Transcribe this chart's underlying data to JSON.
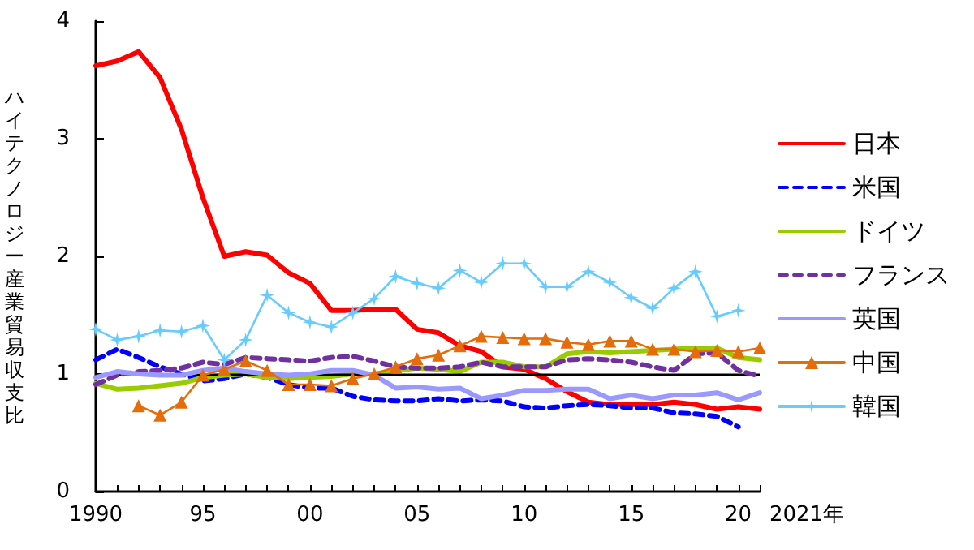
{
  "chart_data": {
    "type": "line",
    "ylabel": "ハイテクノロジー産業貿易収支比",
    "x": [
      1990,
      1991,
      1992,
      1993,
      1994,
      1995,
      1996,
      1997,
      1998,
      1999,
      2000,
      2001,
      2002,
      2003,
      2004,
      2005,
      2006,
      2007,
      2008,
      2009,
      2010,
      2011,
      2012,
      2013,
      2014,
      2015,
      2016,
      2017,
      2018,
      2019,
      2020,
      2021
    ],
    "xlim": [
      1990,
      2021
    ],
    "xticks": [
      {
        "value": 1990,
        "label": "1990"
      },
      {
        "value": 1991,
        "label": null
      },
      {
        "value": 1992,
        "label": null
      },
      {
        "value": 1993,
        "label": null
      },
      {
        "value": 1994,
        "label": null
      },
      {
        "value": 1995,
        "label": "95"
      },
      {
        "value": 1996,
        "label": null
      },
      {
        "value": 1997,
        "label": null
      },
      {
        "value": 1998,
        "label": null
      },
      {
        "value": 1999,
        "label": null
      },
      {
        "value": 2000,
        "label": "00"
      },
      {
        "value": 2001,
        "label": null
      },
      {
        "value": 2002,
        "label": null
      },
      {
        "value": 2003,
        "label": null
      },
      {
        "value": 2004,
        "label": null
      },
      {
        "value": 2005,
        "label": "05"
      },
      {
        "value": 2006,
        "label": null
      },
      {
        "value": 2007,
        "label": null
      },
      {
        "value": 2008,
        "label": null
      },
      {
        "value": 2009,
        "label": null
      },
      {
        "value": 2010,
        "label": "10"
      },
      {
        "value": 2011,
        "label": null
      },
      {
        "value": 2012,
        "label": null
      },
      {
        "value": 2013,
        "label": null
      },
      {
        "value": 2014,
        "label": null
      },
      {
        "value": 2015,
        "label": "15"
      },
      {
        "value": 2016,
        "label": null
      },
      {
        "value": 2017,
        "label": null
      },
      {
        "value": 2018,
        "label": null
      },
      {
        "value": 2019,
        "label": null
      },
      {
        "value": 2020,
        "label": "20"
      },
      {
        "value": 2021,
        "label": null
      }
    ],
    "xlabel": "2021年",
    "ylim": [
      0,
      4
    ],
    "yticks": [
      0,
      1,
      2,
      3,
      4
    ],
    "grid": false,
    "legend": "right",
    "ref_lines": [
      {
        "axis": "y",
        "value": 1,
        "color": "#000000"
      }
    ],
    "series": [
      {
        "name": "日本",
        "color": "#ff0000",
        "line_style": "solid",
        "marker": "none",
        "values": [
          3.62,
          3.66,
          3.74,
          3.52,
          3.08,
          2.5,
          2.0,
          2.04,
          2.01,
          1.86,
          1.77,
          1.54,
          1.54,
          1.55,
          1.55,
          1.38,
          1.35,
          1.24,
          1.19,
          1.06,
          1.04,
          0.96,
          0.85,
          0.76,
          0.74,
          0.74,
          0.74,
          0.76,
          0.74,
          0.7,
          0.72,
          0.7
        ]
      },
      {
        "name": "米国",
        "color": "#0000ff",
        "line_style": "dashed",
        "marker": "none",
        "values": [
          1.12,
          1.21,
          1.14,
          1.06,
          1.0,
          0.94,
          0.96,
          1.0,
          0.97,
          0.91,
          0.88,
          0.88,
          0.81,
          0.78,
          0.77,
          0.77,
          0.79,
          0.77,
          0.78,
          0.77,
          0.72,
          0.71,
          0.73,
          0.74,
          0.73,
          0.71,
          0.71,
          0.67,
          0.66,
          0.64,
          0.55,
          null
        ]
      },
      {
        "name": "ドイツ",
        "color": "#99cc00",
        "line_style": "solid",
        "marker": "none",
        "values": [
          0.92,
          0.87,
          0.88,
          0.9,
          0.92,
          0.97,
          0.99,
          1.0,
          0.97,
          0.96,
          0.97,
          0.98,
          1.0,
          1.0,
          1.03,
          1.05,
          1.04,
          1.02,
          1.1,
          1.1,
          1.06,
          1.06,
          1.17,
          1.19,
          1.18,
          1.19,
          1.2,
          1.21,
          1.22,
          1.22,
          1.14,
          1.12
        ]
      },
      {
        "name": "フランス",
        "color": "#7030a0",
        "line_style": "dashed",
        "marker": "none",
        "values": [
          0.91,
          0.99,
          1.02,
          1.03,
          1.05,
          1.1,
          1.08,
          1.14,
          1.13,
          1.12,
          1.11,
          1.14,
          1.15,
          1.11,
          1.06,
          1.05,
          1.05,
          1.06,
          1.1,
          1.06,
          1.06,
          1.06,
          1.12,
          1.13,
          1.12,
          1.1,
          1.06,
          1.03,
          1.17,
          1.18,
          1.03,
          0.98
        ]
      },
      {
        "name": "英国",
        "color": "#9999ff",
        "line_style": "solid",
        "marker": "none",
        "values": [
          0.97,
          1.02,
          1.0,
          0.99,
          0.99,
          1.03,
          1.05,
          1.02,
          1.0,
          0.99,
          1.0,
          1.03,
          1.03,
          0.99,
          0.88,
          0.89,
          0.87,
          0.88,
          0.79,
          0.82,
          0.86,
          0.86,
          0.87,
          0.87,
          0.79,
          0.82,
          0.79,
          0.82,
          0.82,
          0.84,
          0.78,
          0.84
        ]
      },
      {
        "name": "中国",
        "color": "#e46c0a",
        "line_style": "solid",
        "marker": "triangle",
        "values": [
          null,
          null,
          0.73,
          0.65,
          0.76,
          0.99,
          1.04,
          1.11,
          1.03,
          0.91,
          0.91,
          0.9,
          0.96,
          1.0,
          1.06,
          1.13,
          1.16,
          1.24,
          1.32,
          1.31,
          1.3,
          1.3,
          1.27,
          1.25,
          1.28,
          1.28,
          1.21,
          1.21,
          1.19,
          1.2,
          1.19,
          1.22
        ]
      },
      {
        "name": "韓国",
        "color": "#66ccff",
        "line_style": "solid",
        "marker": "star",
        "values": [
          1.38,
          1.29,
          1.32,
          1.37,
          1.36,
          1.41,
          1.12,
          1.29,
          1.67,
          1.52,
          1.44,
          1.4,
          1.52,
          1.64,
          1.83,
          1.77,
          1.73,
          1.88,
          1.78,
          1.94,
          1.94,
          1.74,
          1.74,
          1.87,
          1.78,
          1.65,
          1.56,
          1.73,
          1.87,
          1.49,
          1.54,
          null
        ]
      }
    ]
  }
}
